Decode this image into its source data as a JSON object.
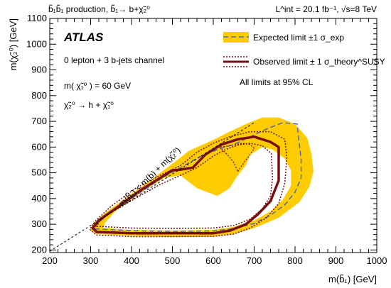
{
  "chart_data": {
    "type": "exclusion-contour",
    "header_left": "b̃₁b̃₁ production, b̃₁→ b+χ̃₂⁰",
    "header_right": "L^int = 20.1 fb⁻¹, √s=8 TeV",
    "xlabel": "m(b̃₁) [GeV]",
    "ylabel": "m(χ̃₂⁰) [GeV]",
    "xlim": [
      200,
      1000
    ],
    "ylim": [
      190,
      1100
    ],
    "xticks": [
      200,
      300,
      400,
      500,
      600,
      700,
      800,
      900,
      1000
    ],
    "yticks": [
      200,
      300,
      400,
      500,
      600,
      700,
      800,
      900,
      1000,
      1100
    ],
    "experiment": "ATLAS",
    "channel": "0 lepton + 3 b-jets channel",
    "mass_note": "m( χ̃₁⁰ ) = 60 GeV",
    "decay_note": "χ̃₂⁰ → h + χ̃₁⁰",
    "cl_note": "All limits at 95% CL",
    "diagonal_label": "m(b̃₁) < m(b) + m(χ̃₂⁰)",
    "legend": {
      "position": "top-right",
      "expected": "Expected limit ±1 σ_exp",
      "observed": "Observed limit ± 1 σ_theory^SUSY"
    },
    "colors": {
      "band": "#ffcc00",
      "expected": "#4a6fa5",
      "observed": "#7a0e0e"
    },
    "diagonal": [
      [
        200,
        195
      ],
      [
        700,
        695
      ]
    ],
    "band_outer": [
      [
        300,
        275
      ],
      [
        315,
        262
      ],
      [
        400,
        255
      ],
      [
        500,
        250
      ],
      [
        600,
        252
      ],
      [
        650,
        262
      ],
      [
        700,
        285
      ],
      [
        760,
        325
      ],
      [
        810,
        385
      ],
      [
        835,
        445
      ],
      [
        845,
        505
      ],
      [
        840,
        575
      ],
      [
        830,
        635
      ],
      [
        800,
        690
      ],
      [
        760,
        715
      ],
      [
        720,
        715
      ],
      [
        680,
        690
      ],
      [
        640,
        660
      ],
      [
        600,
        628
      ],
      [
        540,
        585
      ],
      [
        500,
        535
      ],
      [
        420,
        440
      ],
      [
        340,
        350
      ],
      [
        305,
        300
      ]
    ],
    "band_inner": [
      [
        330,
        285
      ],
      [
        400,
        278
      ],
      [
        500,
        275
      ],
      [
        600,
        278
      ],
      [
        650,
        290
      ],
      [
        700,
        315
      ],
      [
        740,
        350
      ],
      [
        770,
        395
      ],
      [
        790,
        450
      ],
      [
        790,
        510
      ],
      [
        775,
        555
      ],
      [
        745,
        590
      ],
      [
        720,
        600
      ],
      [
        690,
        570
      ],
      [
        680,
        530
      ],
      [
        660,
        490
      ],
      [
        640,
        440
      ],
      [
        610,
        410
      ],
      [
        560,
        440
      ],
      [
        520,
        490
      ],
      [
        480,
        480
      ],
      [
        420,
        420
      ],
      [
        360,
        350
      ],
      [
        335,
        305
      ]
    ],
    "expected_contour": [
      [
        310,
        282
      ],
      [
        400,
        275
      ],
      [
        500,
        272
      ],
      [
        600,
        274
      ],
      [
        650,
        283
      ],
      [
        700,
        303
      ],
      [
        740,
        335
      ],
      [
        775,
        375
      ],
      [
        800,
        425
      ],
      [
        815,
        480
      ],
      [
        815,
        555
      ],
      [
        810,
        615
      ],
      [
        805,
        690
      ],
      [
        770,
        695
      ],
      [
        730,
        670
      ],
      [
        690,
        640
      ],
      [
        650,
        610
      ],
      [
        610,
        590
      ],
      [
        570,
        565
      ],
      [
        520,
        520
      ],
      [
        470,
        475
      ],
      [
        400,
        400
      ],
      [
        340,
        335
      ],
      [
        312,
        295
      ]
    ],
    "observed_contour": [
      [
        305,
        285
      ],
      [
        315,
        270
      ],
      [
        400,
        265
      ],
      [
        500,
        265
      ],
      [
        600,
        265
      ],
      [
        640,
        275
      ],
      [
        680,
        300
      ],
      [
        710,
        340
      ],
      [
        740,
        390
      ],
      [
        760,
        470
      ],
      [
        760,
        600
      ],
      [
        740,
        620
      ],
      [
        700,
        640
      ],
      [
        660,
        630
      ],
      [
        620,
        610
      ],
      [
        580,
        570
      ],
      [
        550,
        520
      ],
      [
        520,
        512
      ],
      [
        500,
        510
      ],
      [
        470,
        480
      ],
      [
        420,
        430
      ],
      [
        360,
        360
      ],
      [
        320,
        315
      ]
    ],
    "observed_plus": [
      [
        315,
        292
      ],
      [
        400,
        285
      ],
      [
        500,
        284
      ],
      [
        600,
        285
      ],
      [
        650,
        295
      ],
      [
        690,
        320
      ],
      [
        720,
        360
      ],
      [
        740,
        410
      ],
      [
        745,
        480
      ],
      [
        742,
        575
      ],
      [
        720,
        605
      ],
      [
        690,
        615
      ],
      [
        660,
        608
      ],
      [
        630,
        590
      ],
      [
        600,
        565
      ],
      [
        560,
        520
      ],
      [
        520,
        490
      ],
      [
        470,
        455
      ],
      [
        420,
        410
      ],
      [
        360,
        355
      ],
      [
        325,
        320
      ]
    ],
    "observed_minus": [
      [
        298,
        280
      ],
      [
        315,
        258
      ],
      [
        400,
        252
      ],
      [
        500,
        252
      ],
      [
        600,
        253
      ],
      [
        650,
        262
      ],
      [
        690,
        285
      ],
      [
        730,
        325
      ],
      [
        760,
        380
      ],
      [
        775,
        460
      ],
      [
        780,
        560
      ],
      [
        775,
        630
      ],
      [
        740,
        660
      ],
      [
        690,
        660
      ],
      [
        640,
        640
      ],
      [
        600,
        615
      ],
      [
        560,
        580
      ],
      [
        520,
        528
      ],
      [
        470,
        490
      ],
      [
        410,
        440
      ],
      [
        350,
        370
      ],
      [
        310,
        310
      ]
    ],
    "observed_island": [
      [
        660,
        505
      ],
      [
        675,
        540
      ],
      [
        690,
        570
      ],
      [
        700,
        595
      ],
      [
        690,
        610
      ],
      [
        670,
        615
      ],
      [
        640,
        605
      ],
      [
        615,
        600
      ],
      [
        635,
        570
      ],
      [
        650,
        540
      ]
    ]
  }
}
